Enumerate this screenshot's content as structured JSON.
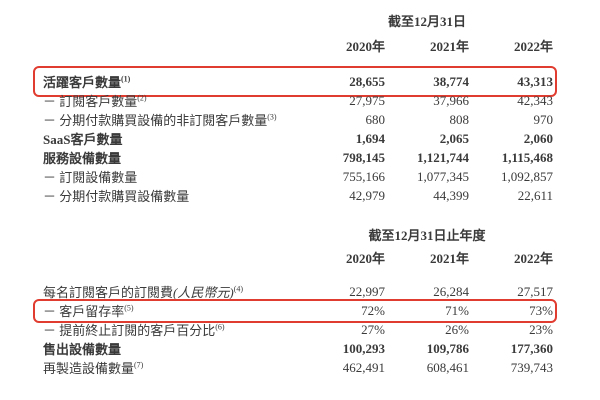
{
  "colors": {
    "highlight_border": "#e13c30",
    "text": "#3a3a3a",
    "background": "#ffffff"
  },
  "table1": {
    "header": "截至12月31日",
    "years": [
      "2020年",
      "2021年",
      "2022年"
    ],
    "rows": [
      {
        "label": "活躍客戶數量",
        "sup": "(1)",
        "values": [
          "28,655",
          "38,774",
          "43,313"
        ],
        "bold": true,
        "highlight": "large"
      },
      {
        "label": "－ 訂閱客戶數量",
        "sup": "(2)",
        "values": [
          "27,975",
          "37,966",
          "42,343"
        ]
      },
      {
        "label": "－ 分期付款購買設備的非訂閱客戶數量",
        "sup": "(3)",
        "values": [
          "680",
          "808",
          "970"
        ]
      },
      {
        "label": "SaaS客戶數量",
        "sup": "",
        "values": [
          "1,694",
          "2,065",
          "2,060"
        ],
        "bold": true
      },
      {
        "label": "服務設備數量",
        "sup": "",
        "values": [
          "798,145",
          "1,121,744",
          "1,115,468"
        ],
        "bold": true
      },
      {
        "label": "－ 訂閱設備數量",
        "sup": "",
        "values": [
          "755,166",
          "1,077,345",
          "1,092,857"
        ]
      },
      {
        "label": "－ 分期付款購買設備數量",
        "sup": "",
        "values": [
          "42,979",
          "44,399",
          "22,611"
        ]
      }
    ]
  },
  "table2": {
    "header": "截至12月31日止年度",
    "years": [
      "2020年",
      "2021年",
      "2022年"
    ],
    "rows": [
      {
        "label": "每名訂閱客戶的訂閱費",
        "label_italic": "(人民幣元)",
        "sup": "(4)",
        "values": [
          "22,997",
          "26,284",
          "27,517"
        ]
      },
      {
        "label": "－ 客戶留存率",
        "sup": "(5)",
        "values": [
          "72%",
          "71%",
          "73%"
        ],
        "highlight": "small"
      },
      {
        "label": "－ 提前終止訂閱的客戶百分比",
        "sup": "(6)",
        "values": [
          "27%",
          "26%",
          "23%"
        ]
      },
      {
        "label": "售出設備數量",
        "sup": "",
        "values": [
          "100,293",
          "109,786",
          "177,360"
        ],
        "bold": true
      },
      {
        "label": "再製造設備數量",
        "sup": "(7)",
        "values": [
          "462,491",
          "608,461",
          "739,743"
        ]
      }
    ]
  }
}
